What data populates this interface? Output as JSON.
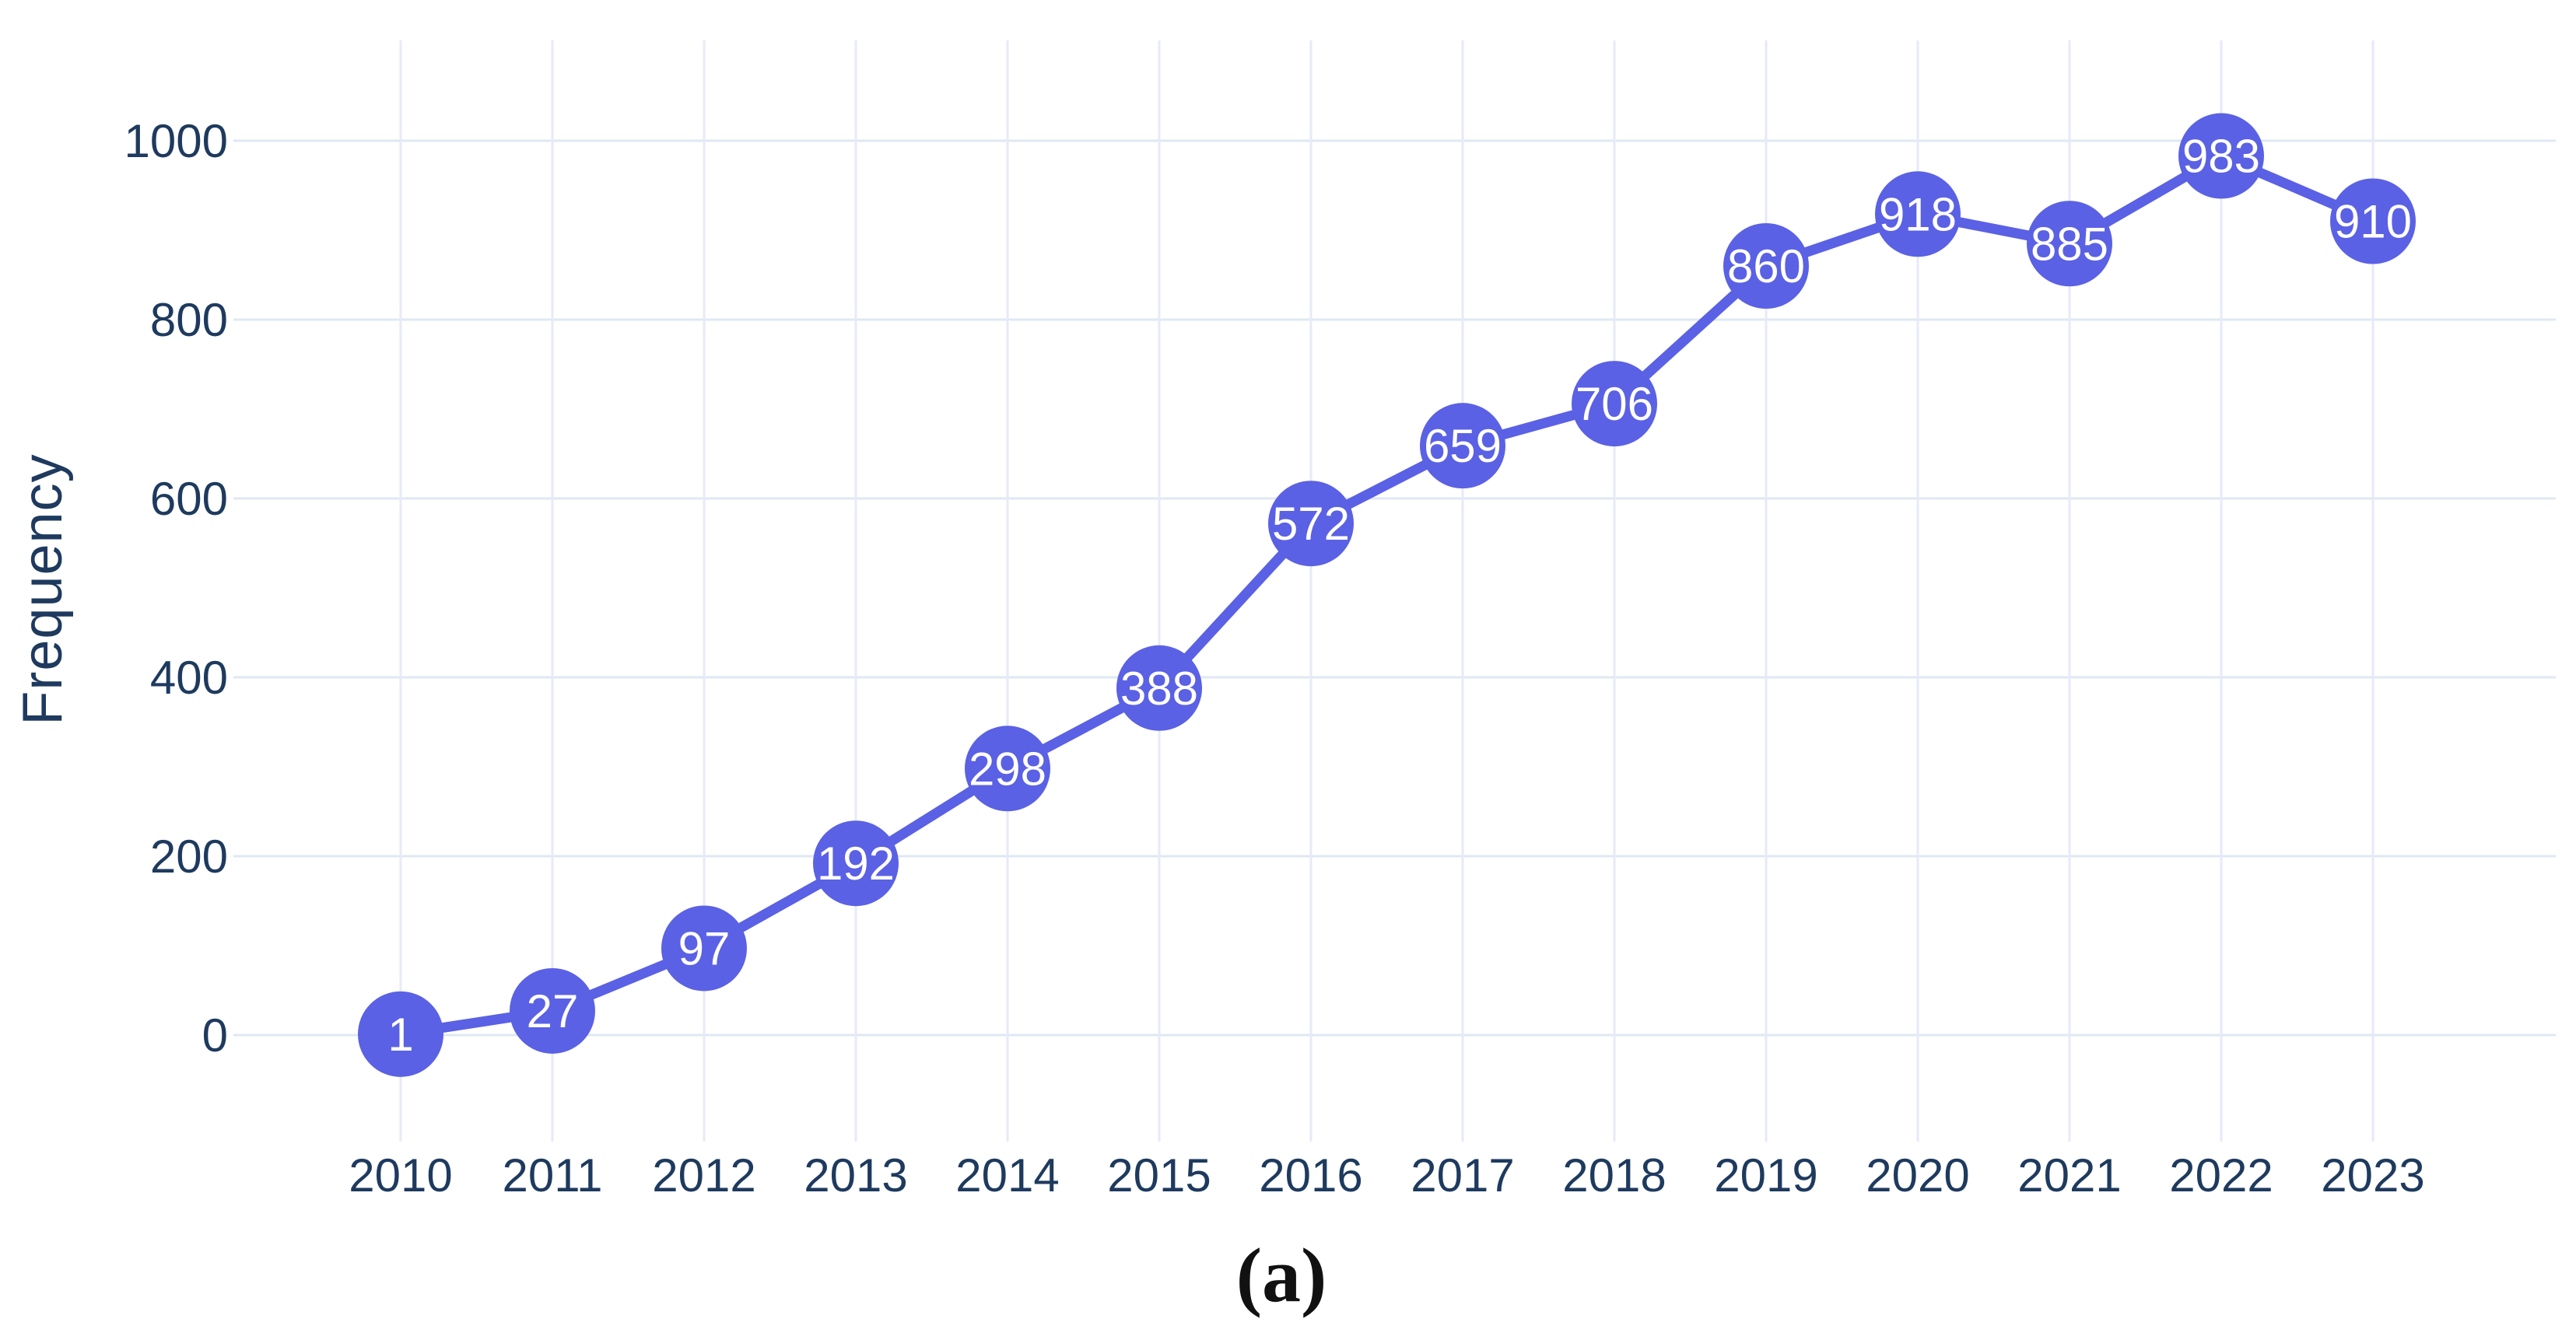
{
  "figure": {
    "caption": "(a)",
    "background": "#ffffff"
  },
  "chart_data": {
    "type": "line",
    "title": "",
    "xlabel": "",
    "ylabel": "Frequency",
    "categories": [
      "2010",
      "2011",
      "2012",
      "2013",
      "2014",
      "2015",
      "2016",
      "2017",
      "2018",
      "2019",
      "2020",
      "2021",
      "2022",
      "2023"
    ],
    "values": [
      1,
      27,
      97,
      192,
      298,
      388,
      572,
      659,
      706,
      860,
      918,
      885,
      983,
      910
    ],
    "point_labels": [
      "1",
      "27",
      "97",
      "192",
      "298",
      "388",
      "572",
      "659",
      "706",
      "860",
      "918",
      "885",
      "983",
      "910"
    ],
    "yticks": [
      0,
      200,
      400,
      600,
      800,
      1000
    ],
    "ylim": [
      -120,
      1125
    ],
    "grid": true,
    "legend": "none",
    "marker_shape": "circle",
    "colors": {
      "series_line": "#5a61e4",
      "marker_fill": "#5a61e4",
      "marker_label": "#ffffff",
      "axis_text": "#1e3a5e",
      "grid_horizontal": "#dfe8f3",
      "grid_vertical": "#e7eaf7"
    }
  }
}
